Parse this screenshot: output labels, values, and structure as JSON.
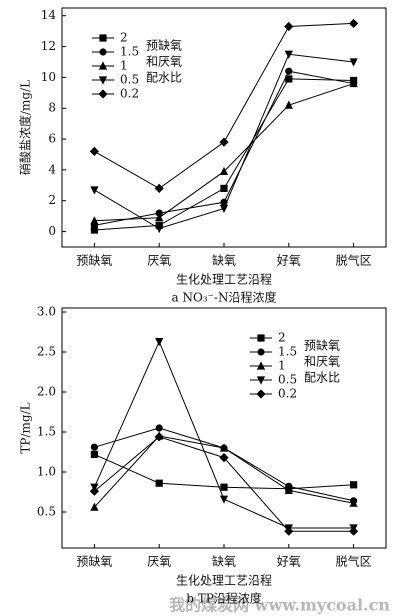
{
  "chart_data": [
    {
      "type": "line",
      "caption": "a NO₃⁻-N沿程浓度",
      "x_label": "生化处理工艺沿程",
      "y_label": "硝酸盐浓度/mg/L",
      "categories": [
        "预缺氧",
        "厌氧",
        "缺氧",
        "好氧",
        "脱气区"
      ],
      "ylim": [
        -1,
        14.5
      ],
      "yticks": [
        0,
        2,
        4,
        6,
        8,
        10,
        12,
        14
      ],
      "legend_title": [
        "预缺氧",
        "和厌氧",
        "配水比"
      ],
      "legend": "upper left",
      "series": [
        {
          "name": "2",
          "color": "#000000",
          "marker": "square",
          "values": [
            0.1,
            0.4,
            2.8,
            9.9,
            9.8
          ]
        },
        {
          "name": "1.5",
          "color": "#000000",
          "marker": "circle",
          "values": [
            0.4,
            1.2,
            1.9,
            10.4,
            9.6
          ]
        },
        {
          "name": "1",
          "color": "#000000",
          "marker": "triangle-up",
          "values": [
            0.7,
            0.9,
            3.9,
            8.2,
            9.6
          ]
        },
        {
          "name": "0.5",
          "color": "#000000",
          "marker": "triangle-down",
          "values": [
            2.7,
            0.2,
            1.5,
            11.5,
            11.0
          ]
        },
        {
          "name": "0.2",
          "color": "#000000",
          "marker": "diamond",
          "values": [
            5.2,
            2.8,
            5.8,
            13.3,
            13.5
          ]
        }
      ]
    },
    {
      "type": "line",
      "caption": "b TP沿程浓度",
      "x_label": "生化处理工艺沿程",
      "y_label": "TP/mg/L",
      "categories": [
        "预缺氧",
        "厌氧",
        "缺氧",
        "好氧",
        "脱气区"
      ],
      "ylim": [
        0.05,
        3.05
      ],
      "yticks": [
        0.5,
        {
          "value": 1,
          "label": "1.0"
        },
        1.5,
        {
          "value": 2,
          "label": "2.0"
        },
        2.5,
        {
          "value": 3,
          "label": "3.0"
        }
      ],
      "legend_title": [
        "预缺氧",
        "和厌氧",
        "配水比"
      ],
      "legend": "upper right",
      "watermark": "我的煤炭网 www.mycoal.cn",
      "series": [
        {
          "name": "2",
          "color": "#000000",
          "marker": "square",
          "values": [
            1.22,
            0.86,
            0.81,
            0.79,
            0.84
          ]
        },
        {
          "name": "1.5",
          "color": "#000000",
          "marker": "circle",
          "values": [
            1.31,
            1.55,
            1.3,
            0.82,
            0.64
          ]
        },
        {
          "name": "1",
          "color": "#000000",
          "marker": "triangle-up",
          "values": [
            0.56,
            1.45,
            1.3,
            0.77,
            0.61
          ]
        },
        {
          "name": "0.5",
          "color": "#000000",
          "marker": "triangle-down",
          "values": [
            0.81,
            2.63,
            0.66,
            0.3,
            0.3
          ]
        },
        {
          "name": "0.2",
          "color": "#000000",
          "marker": "diamond",
          "values": [
            0.76,
            1.44,
            1.18,
            0.26,
            0.26
          ]
        }
      ]
    }
  ]
}
